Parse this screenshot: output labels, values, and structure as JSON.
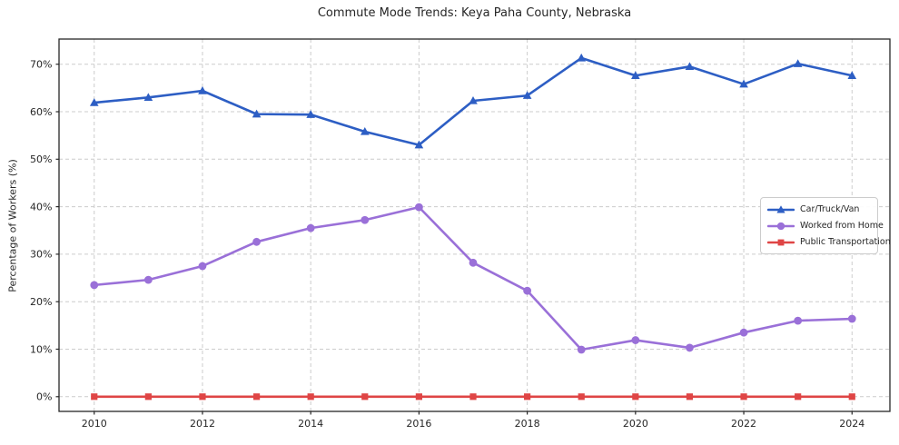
{
  "chart_data": {
    "type": "line",
    "title": "Commute Mode Trends: Keya Paha County, Nebraska",
    "xlabel": "",
    "ylabel": "Percentage of Workers (%)",
    "x": [
      2010,
      2011,
      2012,
      2013,
      2014,
      2015,
      2016,
      2017,
      2018,
      2019,
      2020,
      2021,
      2022,
      2023,
      2024
    ],
    "series": [
      {
        "name": "Car/Truck/Van",
        "color": "#2d5ec4",
        "marker": "triangle",
        "values": [
          61.9,
          63.0,
          64.4,
          59.5,
          59.4,
          55.8,
          53.0,
          62.3,
          63.4,
          71.3,
          67.6,
          69.5,
          65.8,
          70.1,
          67.6
        ]
      },
      {
        "name": "Worked from Home",
        "color": "#9a70d8",
        "marker": "circle",
        "values": [
          23.5,
          24.6,
          27.5,
          32.6,
          35.5,
          37.2,
          39.9,
          28.2,
          22.3,
          9.9,
          11.9,
          10.3,
          13.5,
          16.0,
          16.4
        ]
      },
      {
        "name": "Public Transportation",
        "color": "#df4545",
        "marker": "square",
        "values": [
          0,
          0,
          0,
          0,
          0,
          0,
          0,
          0,
          0,
          0,
          0,
          0,
          0,
          0,
          0
        ]
      }
    ],
    "yticks": {
      "values": [
        0,
        10,
        20,
        30,
        40,
        50,
        60,
        70
      ],
      "labels": [
        "0%",
        "10%",
        "20%",
        "30%",
        "40%",
        "50%",
        "60%",
        "70%"
      ]
    },
    "xticks": [
      2010,
      2012,
      2014,
      2016,
      2018,
      2020,
      2022,
      2024
    ],
    "xlim": [
      2009.35,
      2024.7
    ],
    "ylim": [
      -3.1,
      75.3
    ],
    "grid": true,
    "grid_color": "#cccccc",
    "axis_color": "#262626",
    "background": "#ffffff",
    "legend_position": "center-right"
  }
}
